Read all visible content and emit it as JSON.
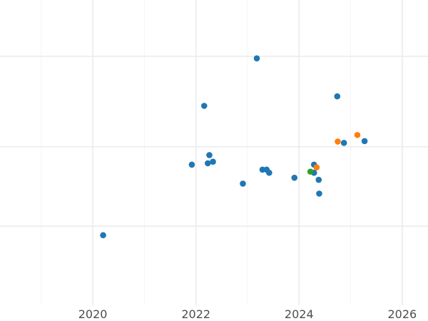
{
  "chart_data": {
    "type": "scatter",
    "title": "",
    "xlabel": "",
    "ylabel": "",
    "xlim": [
      2018.2,
      2026.5
    ],
    "ylim": [
      0,
      1
    ],
    "x_ticks": [
      2020,
      2022,
      2024,
      2026
    ],
    "x_tick_labels": [
      "2020",
      "2022",
      "2024",
      "2026"
    ],
    "y_gridlines": [
      0.2593,
      0.5193,
      0.8156
    ],
    "grid": true,
    "legend": "none",
    "series": [
      {
        "color": "#1f77b4",
        "points": [
          {
            "x": 2020.2,
            "y": 0.2296
          },
          {
            "x": 2021.92,
            "y": 0.4607
          },
          {
            "x": 2022.16,
            "y": 0.6533
          },
          {
            "x": 2022.23,
            "y": 0.4652
          },
          {
            "x": 2022.26,
            "y": 0.4919
          },
          {
            "x": 2022.33,
            "y": 0.4704
          },
          {
            "x": 2022.91,
            "y": 0.3985
          },
          {
            "x": 2023.18,
            "y": 0.8089
          },
          {
            "x": 2023.29,
            "y": 0.4444
          },
          {
            "x": 2023.37,
            "y": 0.4444
          },
          {
            "x": 2023.42,
            "y": 0.4341
          },
          {
            "x": 2023.91,
            "y": 0.4178
          },
          {
            "x": 2024.29,
            "y": 0.4607
          },
          {
            "x": 2024.29,
            "y": 0.4341
          },
          {
            "x": 2024.38,
            "y": 0.4111
          },
          {
            "x": 2024.39,
            "y": 0.3659
          },
          {
            "x": 2024.74,
            "y": 0.6844
          },
          {
            "x": 2024.87,
            "y": 0.5319
          },
          {
            "x": 2025.27,
            "y": 0.5378
          }
        ]
      },
      {
        "color": "#ff7f0e",
        "points": [
          {
            "x": 2024.34,
            "y": 0.4519
          },
          {
            "x": 2024.75,
            "y": 0.5363
          },
          {
            "x": 2025.13,
            "y": 0.5578
          }
        ]
      },
      {
        "color": "#2ca02c",
        "points": [
          {
            "x": 2024.22,
            "y": 0.4378
          }
        ]
      }
    ]
  }
}
